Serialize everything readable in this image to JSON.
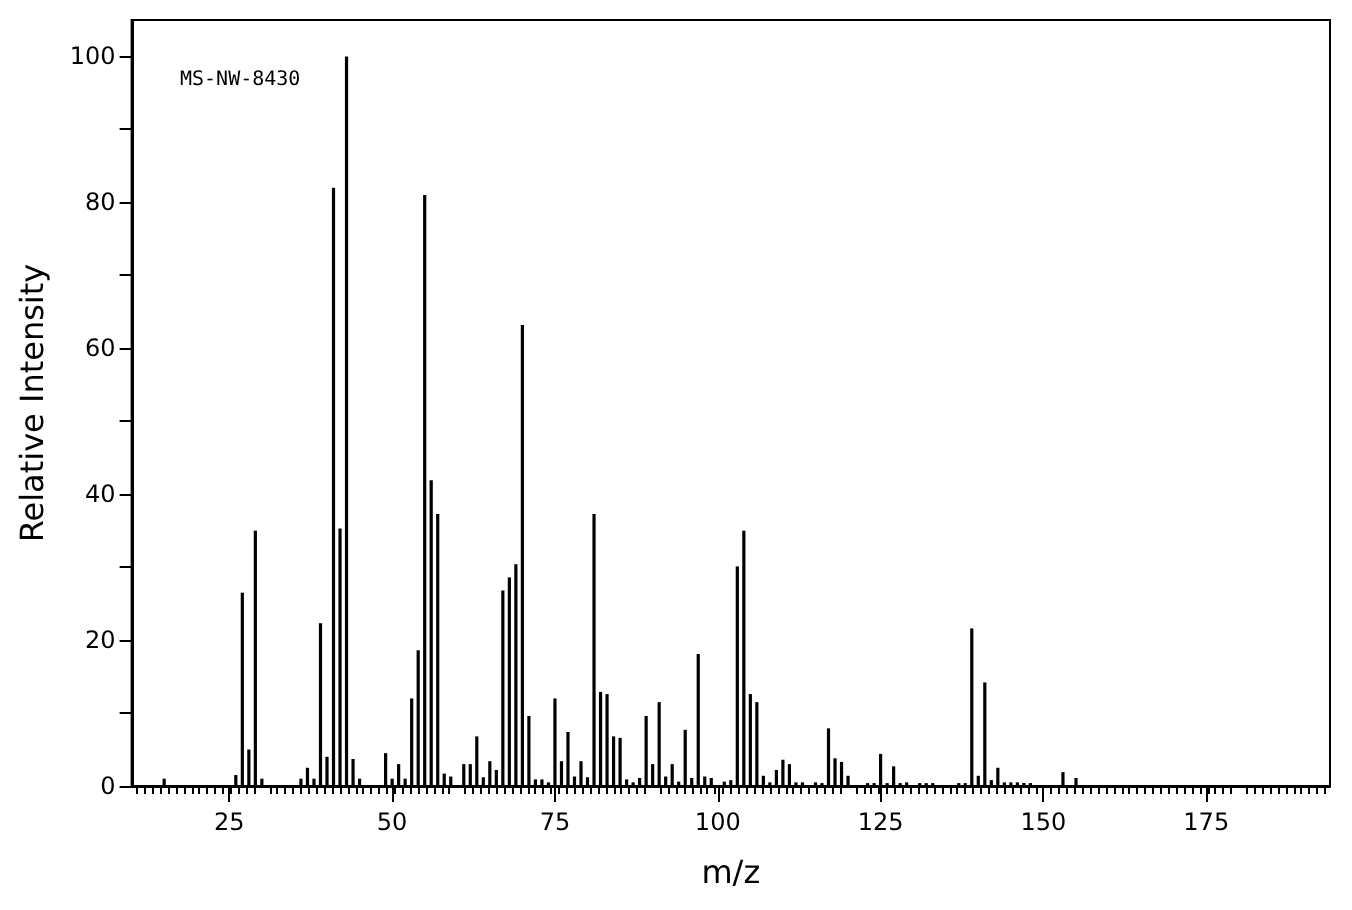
{
  "chart_data": {
    "type": "bar",
    "xlabel": "m/z",
    "ylabel": "Relative Intensity",
    "annotations": [
      "MS-NW-8430"
    ],
    "x": [
      15,
      26,
      27,
      28,
      29,
      30,
      36,
      37,
      38,
      39,
      40,
      41,
      42,
      43,
      44,
      45,
      49,
      50,
      51,
      52,
      53,
      54,
      55,
      56,
      57,
      58,
      59,
      61,
      62,
      63,
      64,
      65,
      66,
      67,
      68,
      69,
      70,
      71,
      72,
      73,
      74,
      75,
      76,
      77,
      78,
      79,
      80,
      81,
      82,
      83,
      84,
      85,
      86,
      87,
      88,
      89,
      90,
      91,
      92,
      93,
      94,
      95,
      96,
      97,
      98,
      99,
      101,
      102,
      103,
      104,
      105,
      106,
      107,
      108,
      109,
      110,
      111,
      112,
      113,
      115,
      116,
      117,
      118,
      119,
      120,
      123,
      124,
      125,
      126,
      127,
      128,
      129,
      131,
      132,
      133,
      137,
      138,
      139,
      140,
      141,
      142,
      143,
      144,
      145,
      146,
      147,
      148,
      153,
      155
    ],
    "values": [
      1,
      1.5,
      26.5,
      5,
      35,
      1,
      1,
      2.5,
      1,
      22.3,
      4,
      82,
      35.3,
      100,
      3.7,
      1,
      4.5,
      1,
      3,
      1,
      12,
      18.6,
      81,
      41.9,
      37.3,
      1.7,
      1.3,
      3,
      3,
      6.8,
      1.2,
      3.4,
      2.2,
      26.8,
      28.6,
      30.4,
      63.2,
      9.6,
      0.9,
      0.9,
      0.5,
      12,
      3.4,
      7.4,
      1.3,
      3.4,
      1.2,
      37.3,
      12.9,
      12.6,
      6.8,
      6.6,
      0.9,
      0.5,
      1.1,
      9.6,
      3,
      11.5,
      1.3,
      3,
      0.6,
      7.7,
      1.1,
      18.1,
      1.3,
      1.1,
      0.6,
      0.8,
      30.1,
      35,
      12.6,
      11.5,
      1.4,
      0.5,
      2.2,
      3.6,
      3,
      0.5,
      0.5,
      0.5,
      0.4,
      7.9,
      3.8,
      3.3,
      1.4,
      0.4,
      0.4,
      4.4,
      0.4,
      2.7,
      0.4,
      0.5,
      0.4,
      0.4,
      0.4,
      0.4,
      0.4,
      21.6,
      1.4,
      14.2,
      0.8,
      2.5,
      0.5,
      0.5,
      0.5,
      0.4,
      0.4,
      1.9,
      1.1
    ],
    "color": "#000000",
    "xlim": [
      10,
      194
    ],
    "xticks": [
      25,
      50,
      75,
      100,
      125,
      150,
      175
    ],
    "ylim": [
      0,
      105
    ],
    "yticks": [
      0,
      {
        "value": 10,
        "label": null
      },
      20,
      {
        "value": 30,
        "label": null
      },
      40,
      {
        "value": 50,
        "label": null
      },
      60,
      {
        "value": 70,
        "label": null
      },
      80,
      {
        "value": 90,
        "label": null
      },
      100
    ],
    "grid": false
  }
}
